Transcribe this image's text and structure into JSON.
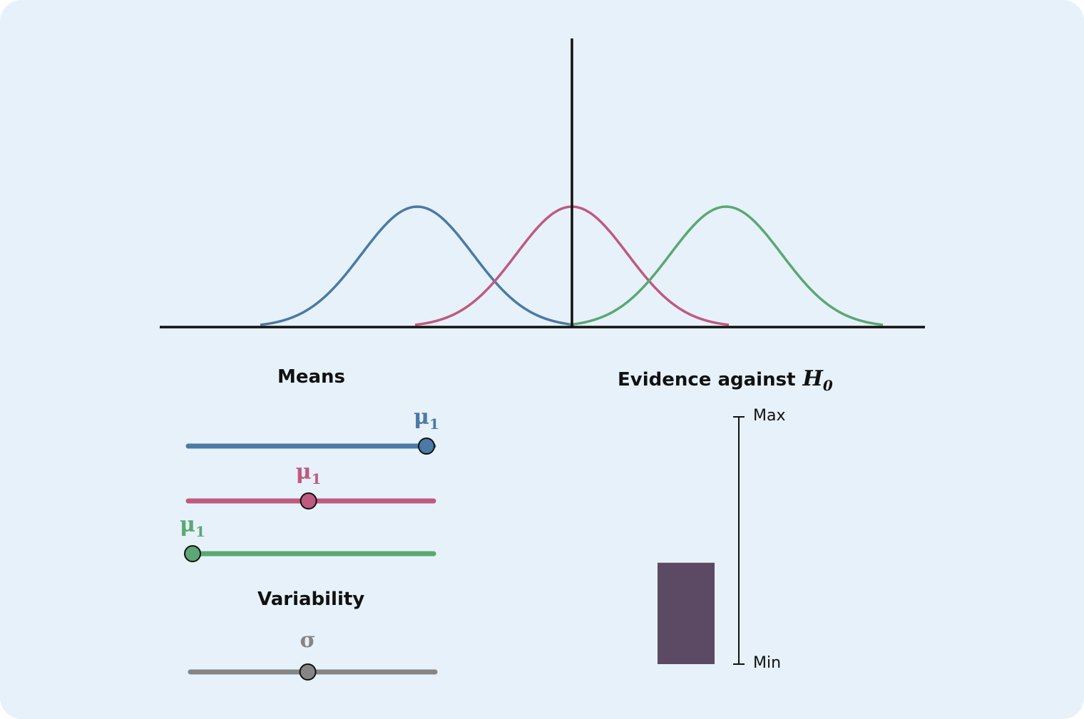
{
  "sections": {
    "means_title": "Means",
    "evidence_title": "Evidence against",
    "evidence_hypothesis": "H",
    "evidence_hypothesis_sub": "0",
    "variability_title": "Variability"
  },
  "sliders": {
    "blue": {
      "symbol": "μ",
      "sub": "1",
      "color": "#4a7aa5",
      "position": 1.0
    },
    "pink": {
      "symbol": "μ",
      "sub": "1",
      "color": "#bf5a80",
      "position": 0.49
    },
    "green": {
      "symbol": "μ",
      "sub": "1",
      "color": "#5aa872",
      "position": 0.0
    },
    "sigma": {
      "symbol": "σ",
      "color": "#858585",
      "position": 0.48
    }
  },
  "evidence_meter": {
    "max_label": "Max",
    "min_label": "Min",
    "level": 0.41,
    "bar_color": "#5c4a65"
  },
  "curves": {
    "blue_color": "#4a7aa5",
    "pink_color": "#bf5a80",
    "green_color": "#5aa872",
    "axis_color": "#111111"
  }
}
